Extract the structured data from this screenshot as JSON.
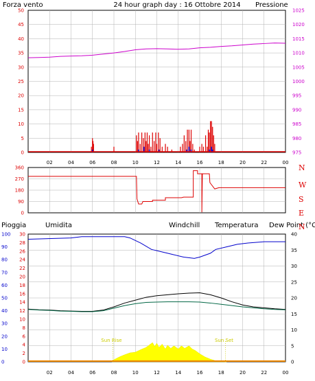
{
  "title": "24 hour graph day : 16 Ottobre 2014",
  "colors": {
    "red": "#dd0000",
    "blue": "#0000cc",
    "magenta": "#cc00cc",
    "orange": "#ee8800",
    "black": "#000000",
    "green": "#006644",
    "yellow": "#ffff00",
    "sunlabel": "#cccc00",
    "grid": "#b0b0b0"
  },
  "x_ticks": [
    "02",
    "04",
    "06",
    "08",
    "10",
    "12",
    "14",
    "16",
    "18",
    "20",
    "22",
    "00"
  ],
  "chart_data": [
    {
      "type": "bar",
      "id": "wind",
      "left_label": "Forza vento",
      "right_label": "Pressione",
      "left_ticks": [
        "0",
        "5",
        "10",
        "15",
        "20",
        "25",
        "30",
        "35",
        "40",
        "45",
        "50"
      ],
      "right_ticks": [
        "975",
        "980",
        "985",
        "990",
        "995",
        "1000",
        "1005",
        "1010",
        "1015",
        "1020",
        "1025"
      ],
      "ylim": [
        0,
        50
      ],
      "y2lim": [
        975,
        1025
      ],
      "gust_bars": [
        [
          5.9,
          2
        ],
        [
          6.0,
          5
        ],
        [
          6.05,
          4
        ],
        [
          6.1,
          3
        ],
        [
          8.0,
          2
        ],
        [
          10.1,
          6
        ],
        [
          10.2,
          4
        ],
        [
          10.3,
          7
        ],
        [
          10.45,
          3
        ],
        [
          10.6,
          7
        ],
        [
          10.75,
          5
        ],
        [
          10.9,
          7
        ],
        [
          11.0,
          4
        ],
        [
          11.1,
          7
        ],
        [
          11.2,
          3
        ],
        [
          11.3,
          6
        ],
        [
          11.45,
          2
        ],
        [
          11.6,
          7
        ],
        [
          11.75,
          4
        ],
        [
          11.9,
          7
        ],
        [
          12.0,
          3
        ],
        [
          12.15,
          7
        ],
        [
          12.3,
          5
        ],
        [
          12.5,
          2
        ],
        [
          12.8,
          3
        ],
        [
          13.0,
          2
        ],
        [
          13.4,
          1
        ],
        [
          14.2,
          2
        ],
        [
          14.4,
          3
        ],
        [
          14.55,
          6
        ],
        [
          14.7,
          4
        ],
        [
          14.85,
          8
        ],
        [
          15.0,
          8
        ],
        [
          15.1,
          4
        ],
        [
          15.2,
          8
        ],
        [
          15.35,
          3
        ],
        [
          15.5,
          1
        ],
        [
          16.0,
          2
        ],
        [
          16.2,
          3
        ],
        [
          16.35,
          2
        ],
        [
          16.55,
          6
        ],
        [
          16.7,
          2
        ],
        [
          16.8,
          8
        ],
        [
          16.9,
          7
        ],
        [
          17.0,
          11
        ],
        [
          17.1,
          11
        ],
        [
          17.2,
          9
        ],
        [
          17.3,
          6
        ],
        [
          17.4,
          3
        ]
      ],
      "speed_bars": [
        [
          6.0,
          1
        ],
        [
          10.3,
          1
        ],
        [
          10.8,
          2
        ],
        [
          11.3,
          1
        ],
        [
          12.2,
          1
        ],
        [
          14.8,
          1
        ],
        [
          15.0,
          2
        ],
        [
          15.2,
          1
        ],
        [
          16.9,
          1
        ],
        [
          17.1,
          2
        ],
        [
          17.2,
          1
        ]
      ],
      "pressure": [
        [
          0,
          1008.3
        ],
        [
          1,
          1008.4
        ],
        [
          2,
          1008.5
        ],
        [
          3,
          1008.8
        ],
        [
          4,
          1008.9
        ],
        [
          5,
          1009.0
        ],
        [
          6,
          1009.2
        ],
        [
          7,
          1009.6
        ],
        [
          8,
          1010.0
        ],
        [
          9,
          1010.5
        ],
        [
          10,
          1011.1
        ],
        [
          11,
          1011.4
        ],
        [
          12,
          1011.5
        ],
        [
          13,
          1011.4
        ],
        [
          14,
          1011.3
        ],
        [
          15,
          1011.4
        ],
        [
          16,
          1011.8
        ],
        [
          17,
          1012.0
        ],
        [
          18,
          1012.3
        ],
        [
          19,
          1012.5
        ],
        [
          20,
          1012.8
        ],
        [
          21,
          1013.1
        ],
        [
          22,
          1013.3
        ],
        [
          23,
          1013.5
        ],
        [
          24,
          1013.4
        ]
      ]
    },
    {
      "type": "line",
      "id": "direction",
      "left_ticks": [
        "0",
        "90",
        "180",
        "270",
        "360"
      ],
      "ylim": [
        0,
        360
      ],
      "right_labels": [
        "N",
        "W",
        "S",
        "E",
        "N"
      ],
      "points": [
        [
          0,
          290
        ],
        [
          10.1,
          290
        ],
        [
          10.15,
          110
        ],
        [
          10.3,
          70
        ],
        [
          10.6,
          70
        ],
        [
          10.7,
          90
        ],
        [
          11.6,
          90
        ],
        [
          11.6,
          100
        ],
        [
          12.8,
          100
        ],
        [
          12.8,
          120
        ],
        [
          14.3,
          120
        ],
        [
          14.5,
          125
        ],
        [
          15.4,
          125
        ],
        [
          15.4,
          335
        ],
        [
          15.8,
          335
        ],
        [
          15.8,
          310
        ],
        [
          16.2,
          310
        ],
        [
          16.2,
          5
        ],
        [
          16.25,
          310
        ],
        [
          16.9,
          310
        ],
        [
          16.95,
          240
        ],
        [
          17.4,
          190
        ],
        [
          17.8,
          200
        ],
        [
          24,
          200
        ]
      ]
    },
    {
      "type": "area",
      "id": "temperature",
      "labels": {
        "rain": "Pioggia",
        "humidity": "Umidita",
        "windchill": "Windchill",
        "temperature": "Temperatura",
        "dewpoint": "Dew Point (°C"
      },
      "far_left_ticks": [
        "0",
        "10",
        "20",
        "30",
        "40",
        "50",
        "60",
        "70",
        "80",
        "90",
        "100"
      ],
      "left_ticks": [
        "0",
        "2",
        "4",
        "6",
        "8",
        "10",
        "12",
        "14",
        "16",
        "18",
        "20",
        "22",
        "24",
        "26",
        "28",
        "30"
      ],
      "right_ticks": [
        "0",
        "5",
        "10",
        "15",
        "20",
        "25",
        "30",
        "35",
        "40"
      ],
      "ylim": [
        0,
        40
      ],
      "humidity_lim": [
        0,
        100
      ],
      "sun_rise_label": "Sun Rise",
      "sun_set_label": "Sun Set",
      "sun_rise_hour": 7.9,
      "sun_set_hour": 18.4,
      "humidity": [
        [
          0,
          96
        ],
        [
          4,
          97
        ],
        [
          5,
          98
        ],
        [
          9,
          98
        ],
        [
          9.5,
          97
        ],
        [
          10.5,
          93
        ],
        [
          11.5,
          88
        ],
        [
          12.5,
          86
        ],
        [
          13.5,
          84
        ],
        [
          14.5,
          82
        ],
        [
          15.5,
          81
        ],
        [
          16.0,
          82
        ],
        [
          17.0,
          85
        ],
        [
          17.5,
          88
        ],
        [
          18.5,
          90
        ],
        [
          19.5,
          92
        ],
        [
          20.5,
          93
        ],
        [
          22,
          94
        ],
        [
          24,
          94
        ]
      ],
      "temperature": [
        [
          0,
          16.5
        ],
        [
          1,
          16.3
        ],
        [
          2,
          16.2
        ],
        [
          3,
          16.0
        ],
        [
          4,
          15.9
        ],
        [
          5,
          15.8
        ],
        [
          6,
          15.8
        ],
        [
          7,
          16.2
        ],
        [
          8,
          17.2
        ],
        [
          9,
          18.4
        ],
        [
          10,
          19.3
        ],
        [
          11,
          20.2
        ],
        [
          12,
          20.7
        ],
        [
          13,
          21.0
        ],
        [
          14,
          21.3
        ],
        [
          15,
          21.5
        ],
        [
          16,
          21.6
        ],
        [
          17,
          21.0
        ],
        [
          18,
          20.0
        ],
        [
          19,
          18.8
        ],
        [
          20,
          17.8
        ],
        [
          21,
          17.2
        ],
        [
          22,
          16.9
        ],
        [
          23,
          16.6
        ],
        [
          24,
          16.4
        ]
      ],
      "dewpoint": [
        [
          0,
          16.4
        ],
        [
          1,
          16.2
        ],
        [
          2,
          16.1
        ],
        [
          3,
          15.9
        ],
        [
          4,
          15.8
        ],
        [
          5,
          15.7
        ],
        [
          6,
          15.7
        ],
        [
          7,
          16.0
        ],
        [
          8,
          16.8
        ],
        [
          9,
          17.6
        ],
        [
          10,
          18.2
        ],
        [
          11,
          18.6
        ],
        [
          12,
          18.7
        ],
        [
          13,
          18.8
        ],
        [
          14,
          18.8
        ],
        [
          15,
          18.8
        ],
        [
          16,
          18.7
        ],
        [
          17,
          18.4
        ],
        [
          18,
          18.0
        ],
        [
          19,
          17.6
        ],
        [
          20,
          17.2
        ],
        [
          21,
          16.9
        ],
        [
          22,
          16.6
        ],
        [
          23,
          16.4
        ],
        [
          24,
          16.3
        ]
      ],
      "radiation": [
        [
          7.8,
          0.3
        ],
        [
          8.5,
          1.5
        ],
        [
          9.0,
          2.2
        ],
        [
          9.5,
          2.8
        ],
        [
          10.0,
          3.0
        ],
        [
          10.5,
          3.8
        ],
        [
          11.0,
          4.5
        ],
        [
          11.4,
          5.5
        ],
        [
          11.6,
          6.0
        ],
        [
          11.8,
          4.8
        ],
        [
          12.0,
          5.8
        ],
        [
          12.2,
          4.5
        ],
        [
          12.5,
          5.5
        ],
        [
          12.8,
          4.0
        ],
        [
          13.0,
          5.2
        ],
        [
          13.3,
          4.2
        ],
        [
          13.6,
          5.0
        ],
        [
          14.0,
          4.0
        ],
        [
          14.3,
          5.0
        ],
        [
          14.6,
          4.2
        ],
        [
          15.0,
          5.0
        ],
        [
          15.3,
          4.0
        ],
        [
          15.6,
          3.5
        ],
        [
          16.0,
          2.5
        ],
        [
          16.5,
          1.5
        ],
        [
          17.0,
          0.8
        ],
        [
          17.5,
          0.3
        ],
        [
          18.0,
          0.1
        ],
        [
          18.5,
          0
        ]
      ]
    }
  ]
}
